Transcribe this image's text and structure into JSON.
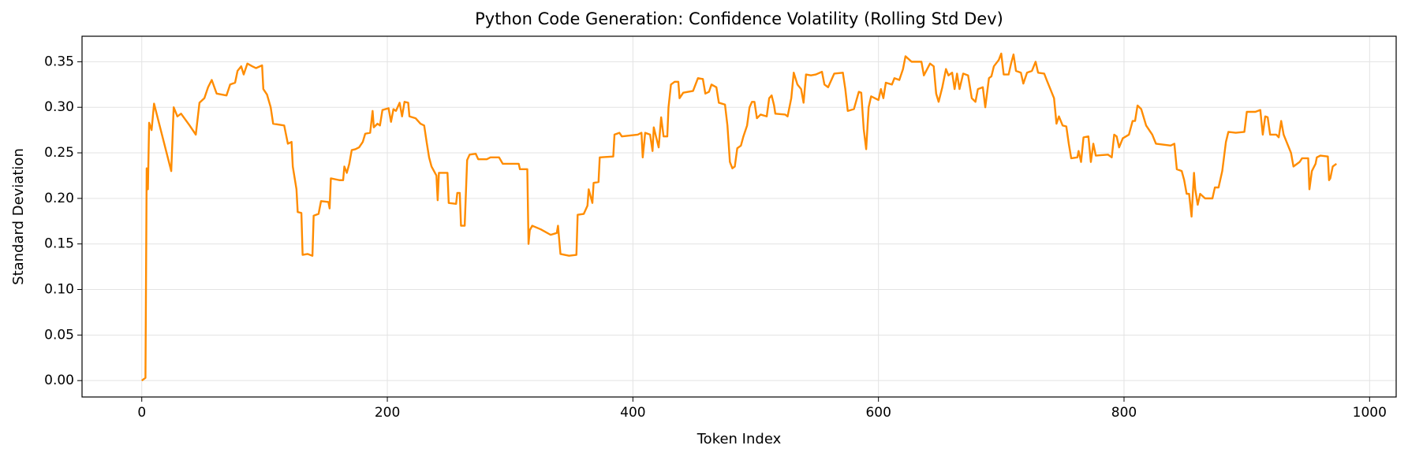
{
  "chart_data": {
    "type": "line",
    "title": "Python Code Generation: Confidence Volatility (Rolling Std Dev)",
    "x_label": "Token Index",
    "y_label": "Standard Deviation",
    "xlim": [
      -48.65,
      1021.65
    ],
    "ylim": [
      -0.018,
      0.378
    ],
    "xticks": [
      0,
      200,
      400,
      600,
      800,
      1000
    ],
    "yticks": [
      {
        "value": 0,
        "label": "0.00"
      },
      0.05,
      {
        "value": 0.1,
        "label": "0.10"
      },
      0.15,
      {
        "value": 0.2,
        "label": "0.20"
      },
      0.25,
      {
        "value": 0.3,
        "label": "0.30"
      },
      0.35
    ],
    "grid": true,
    "x": [
      0,
      3,
      4,
      5,
      6,
      8,
      10,
      24,
      26,
      29,
      32,
      39,
      44,
      47,
      51,
      54,
      57,
      61,
      69,
      72,
      76,
      78,
      81,
      83,
      86,
      90,
      93,
      98,
      99,
      102,
      105,
      107,
      116,
      119,
      122,
      123,
      126,
      127,
      130,
      131,
      135,
      139,
      140,
      144,
      146,
      152,
      153,
      154,
      161,
      164,
      165,
      167,
      169,
      171,
      174,
      177,
      180,
      182,
      186,
      188,
      189,
      192,
      194,
      196,
      201,
      203,
      205,
      207,
      210,
      212,
      214,
      217,
      218,
      223,
      227,
      230,
      232,
      234,
      236,
      238,
      240,
      241,
      242,
      249,
      250,
      256,
      257,
      259,
      260,
      263,
      265,
      267,
      272,
      274,
      281,
      284,
      291,
      294,
      307,
      308,
      314,
      315,
      316,
      318,
      325,
      333,
      338,
      339,
      341,
      348,
      354,
      355,
      360,
      363,
      364,
      367,
      368,
      372,
      373,
      384,
      385,
      389,
      391,
      404,
      407,
      408,
      410,
      414,
      416,
      417,
      421,
      423,
      425,
      428,
      429,
      431,
      434,
      437,
      438,
      441,
      449,
      453,
      457,
      459,
      462,
      464,
      468,
      470,
      475,
      477,
      479,
      481,
      483,
      485,
      488,
      490,
      493,
      495,
      497,
      499,
      501,
      504,
      509,
      511,
      513,
      515,
      516,
      524,
      526,
      529,
      531,
      534,
      537,
      539,
      541,
      545,
      549,
      554,
      556,
      559,
      564,
      571,
      573,
      575,
      580,
      584,
      586,
      588,
      590,
      592,
      594,
      600,
      602,
      604,
      606,
      611,
      613,
      617,
      620,
      622,
      627,
      635,
      637,
      642,
      645,
      647,
      649,
      652,
      655,
      657,
      660,
      662,
      664,
      666,
      669,
      673,
      676,
      679,
      681,
      685,
      687,
      690,
      692,
      694,
      698,
      700,
      702,
      706,
      708,
      710,
      712,
      716,
      718,
      721,
      725,
      728,
      730,
      735,
      737,
      740,
      743,
      745,
      747,
      750,
      753,
      755,
      757,
      762,
      763,
      765,
      767,
      771,
      773,
      775,
      777,
      787,
      790,
      792,
      794,
      796,
      799,
      804,
      807,
      809,
      811,
      814,
      818,
      823,
      826,
      838,
      841,
      843,
      847,
      849,
      851,
      853,
      855,
      857,
      858,
      860,
      862,
      866,
      872,
      874,
      877,
      880,
      883,
      885,
      891,
      898,
      900,
      907,
      911,
      913,
      915,
      917,
      919,
      924,
      926,
      928,
      930,
      936,
      938,
      943,
      945,
      950,
      951,
      953,
      956,
      957,
      960,
      966,
      967,
      968,
      970,
      973
    ],
    "series": [
      {
        "name": "Rolling Std Dev",
        "color": "#ff8c00",
        "values": [
          0,
          0.003,
          0.233,
          0.21,
          0.283,
          0.275,
          0.304,
          0.23,
          0.3,
          0.29,
          0.293,
          0.28,
          0.27,
          0.305,
          0.31,
          0.322,
          0.33,
          0.315,
          0.313,
          0.325,
          0.327,
          0.34,
          0.345,
          0.336,
          0.348,
          0.345,
          0.343,
          0.346,
          0.32,
          0.314,
          0.3,
          0.282,
          0.28,
          0.26,
          0.262,
          0.235,
          0.21,
          0.185,
          0.184,
          0.138,
          0.139,
          0.137,
          0.181,
          0.183,
          0.197,
          0.196,
          0.189,
          0.222,
          0.22,
          0.22,
          0.235,
          0.228,
          0.238,
          0.253,
          0.254,
          0.256,
          0.262,
          0.271,
          0.272,
          0.296,
          0.278,
          0.282,
          0.28,
          0.297,
          0.299,
          0.284,
          0.298,
          0.296,
          0.305,
          0.29,
          0.306,
          0.305,
          0.29,
          0.288,
          0.282,
          0.28,
          0.262,
          0.245,
          0.235,
          0.23,
          0.225,
          0.198,
          0.228,
          0.228,
          0.195,
          0.194,
          0.206,
          0.206,
          0.17,
          0.17,
          0.242,
          0.248,
          0.249,
          0.243,
          0.243,
          0.245,
          0.245,
          0.238,
          0.238,
          0.232,
          0.232,
          0.15,
          0.165,
          0.17,
          0.166,
          0.16,
          0.162,
          0.17,
          0.139,
          0.137,
          0.138,
          0.182,
          0.183,
          0.192,
          0.21,
          0.195,
          0.217,
          0.218,
          0.245,
          0.246,
          0.27,
          0.272,
          0.268,
          0.27,
          0.272,
          0.245,
          0.272,
          0.27,
          0.252,
          0.278,
          0.256,
          0.289,
          0.268,
          0.268,
          0.3,
          0.325,
          0.328,
          0.328,
          0.31,
          0.316,
          0.318,
          0.332,
          0.331,
          0.315,
          0.317,
          0.325,
          0.322,
          0.305,
          0.303,
          0.28,
          0.24,
          0.233,
          0.235,
          0.255,
          0.258,
          0.268,
          0.28,
          0.3,
          0.306,
          0.306,
          0.288,
          0.292,
          0.29,
          0.31,
          0.313,
          0.302,
          0.293,
          0.292,
          0.29,
          0.31,
          0.338,
          0.325,
          0.32,
          0.305,
          0.336,
          0.335,
          0.336,
          0.339,
          0.325,
          0.322,
          0.337,
          0.338,
          0.32,
          0.296,
          0.298,
          0.317,
          0.316,
          0.276,
          0.254,
          0.3,
          0.312,
          0.308,
          0.32,
          0.31,
          0.327,
          0.325,
          0.332,
          0.33,
          0.342,
          0.356,
          0.35,
          0.35,
          0.335,
          0.348,
          0.345,
          0.315,
          0.306,
          0.322,
          0.342,
          0.335,
          0.338,
          0.32,
          0.337,
          0.32,
          0.337,
          0.335,
          0.31,
          0.306,
          0.32,
          0.322,
          0.3,
          0.332,
          0.334,
          0.345,
          0.352,
          0.359,
          0.336,
          0.336,
          0.348,
          0.358,
          0.34,
          0.338,
          0.326,
          0.338,
          0.34,
          0.35,
          0.338,
          0.337,
          0.33,
          0.32,
          0.31,
          0.282,
          0.29,
          0.28,
          0.279,
          0.26,
          0.244,
          0.245,
          0.252,
          0.24,
          0.267,
          0.268,
          0.24,
          0.26,
          0.247,
          0.248,
          0.245,
          0.27,
          0.268,
          0.256,
          0.266,
          0.27,
          0.285,
          0.285,
          0.302,
          0.298,
          0.28,
          0.27,
          0.26,
          0.258,
          0.26,
          0.232,
          0.23,
          0.22,
          0.205,
          0.205,
          0.18,
          0.228,
          0.21,
          0.193,
          0.205,
          0.2,
          0.2,
          0.212,
          0.212,
          0.23,
          0.262,
          0.273,
          0.272,
          0.273,
          0.295,
          0.295,
          0.297,
          0.27,
          0.29,
          0.289,
          0.27,
          0.27,
          0.267,
          0.285,
          0.27,
          0.25,
          0.235,
          0.24,
          0.244,
          0.244,
          0.21,
          0.23,
          0.238,
          0.245,
          0.247,
          0.246,
          0.22,
          0.222,
          0.235,
          0.238
        ]
      }
    ]
  }
}
